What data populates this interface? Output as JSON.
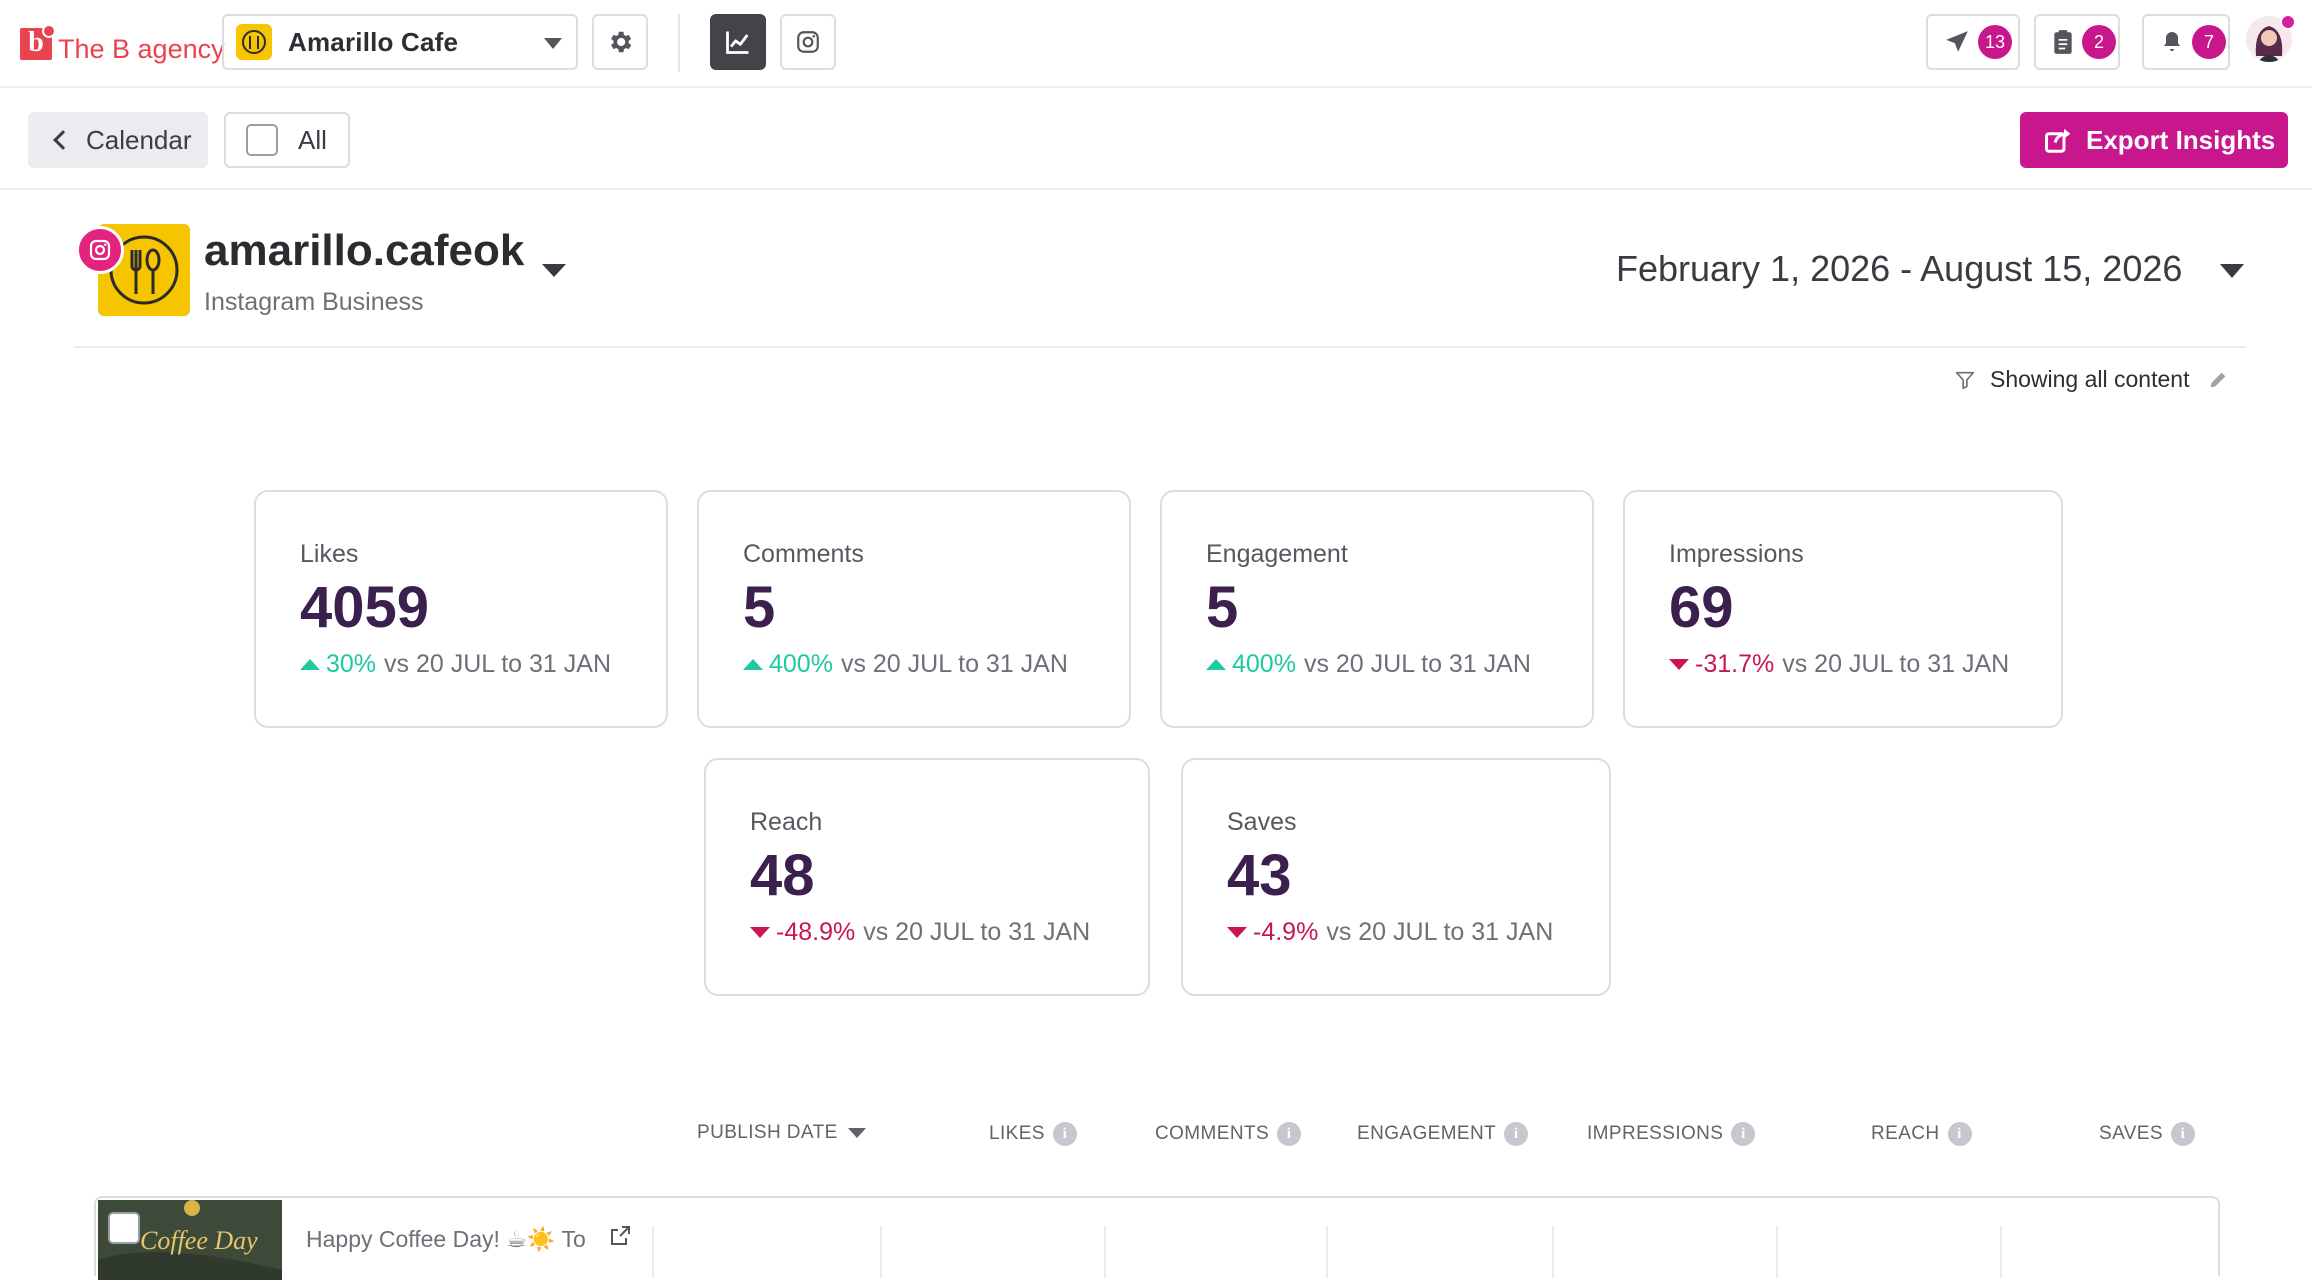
{
  "brand": {
    "mark": "b",
    "name": "The B agency"
  },
  "page_selector": {
    "value": "Amarillo Cafe"
  },
  "toolbar_counts": {
    "send": "13",
    "posts": "2",
    "notifications": "7"
  },
  "subbar": {
    "back_label": "Calendar",
    "all_label": "All",
    "export_label": "Export Insights"
  },
  "profile": {
    "name": "amarillo.cafeok",
    "type": "Instagram Business",
    "date_range": "February 1, 2026 - August 15, 2026"
  },
  "filter": {
    "label": "Showing all content"
  },
  "metrics": [
    {
      "label": "Likes",
      "value": "4059",
      "delta": "30%",
      "direction": "up",
      "compare": "vs 20 JUL to 31 JAN"
    },
    {
      "label": "Comments",
      "value": "5",
      "delta": "400%",
      "direction": "up",
      "compare": "vs 20 JUL to 31 JAN"
    },
    {
      "label": "Engagement",
      "value": "5",
      "delta": "400%",
      "direction": "up",
      "compare": "vs 20 JUL to 31 JAN"
    },
    {
      "label": "Impressions",
      "value": "69",
      "delta": "-31.7%",
      "direction": "down",
      "compare": "vs 20 JUL to 31 JAN"
    },
    {
      "label": "Reach",
      "value": "48",
      "delta": "-48.9%",
      "direction": "down",
      "compare": "vs 20 JUL to 31 JAN"
    },
    {
      "label": "Saves",
      "value": "43",
      "delta": "-4.9%",
      "direction": "down",
      "compare": "vs 20 JUL to 31 JAN"
    }
  ],
  "table": {
    "columns": [
      "PUBLISH DATE",
      "LIKES",
      "COMMENTS",
      "ENGAGEMENT",
      "IMPRESSIONS",
      "REACH",
      "SAVES"
    ],
    "info_glyph": "i",
    "rows": [
      {
        "thumb_text": "Coffee Day",
        "caption": "Happy Coffee Day! ☕☀️ To"
      }
    ]
  },
  "colors": {
    "brand_red": "#e8434f",
    "accent_magenta": "#c8178d",
    "positive": "#1ec9a0",
    "negative": "#c8174e",
    "metric_value": "#3b1f4d",
    "logo_yellow": "#f7c400"
  },
  "icons": [
    "settings-gear-icon",
    "analytics-chart-icon",
    "instagram-icon",
    "send-plane-icon",
    "clipboard-icon",
    "bell-icon",
    "filter-funnel-icon",
    "edit-pencil-icon",
    "external-link-icon",
    "export-share-icon"
  ]
}
